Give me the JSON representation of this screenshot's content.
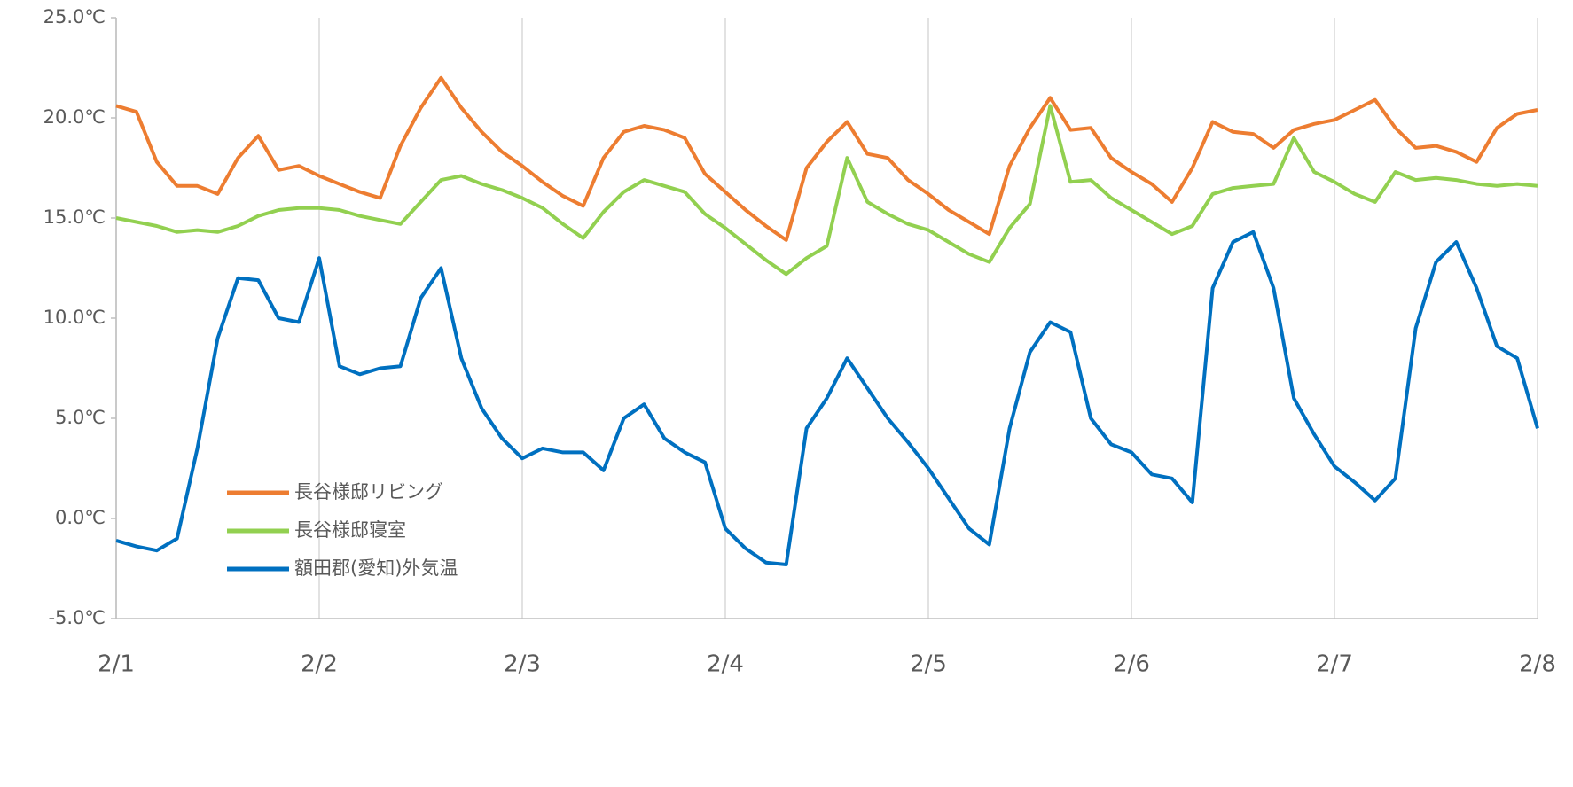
{
  "chart_data": {
    "type": "line",
    "x": [
      0,
      0.1,
      0.2,
      0.3,
      0.4,
      0.5,
      0.6,
      0.7,
      0.8,
      0.9,
      1,
      1.1,
      1.2,
      1.3,
      1.4,
      1.5,
      1.6,
      1.7,
      1.8,
      1.9,
      2,
      2.1,
      2.2,
      2.3,
      2.4,
      2.5,
      2.6,
      2.7,
      2.8,
      2.9,
      3,
      3.1,
      3.2,
      3.3,
      3.4,
      3.5,
      3.6,
      3.7,
      3.8,
      3.9,
      4,
      4.1,
      4.2,
      4.3,
      4.4,
      4.5,
      4.6,
      4.7,
      4.8,
      4.9,
      5,
      5.1,
      5.2,
      5.3,
      5.4,
      5.5,
      5.6,
      5.7,
      5.8,
      5.9,
      6,
      6.1,
      6.2,
      6.3,
      6.4,
      6.5,
      6.6,
      6.7,
      6.8,
      6.9,
      7
    ],
    "xlim": [
      0,
      7
    ],
    "xticks": [
      {
        "value": 0,
        "label": "2/1"
      },
      {
        "value": 1,
        "label": "2/2"
      },
      {
        "value": 2,
        "label": "2/3"
      },
      {
        "value": 3,
        "label": "2/4"
      },
      {
        "value": 4,
        "label": "2/5"
      },
      {
        "value": 5,
        "label": "2/6"
      },
      {
        "value": 6,
        "label": "2/7"
      },
      {
        "value": 7,
        "label": "2/8"
      }
    ],
    "ylim": [
      -5,
      25
    ],
    "yticks": [
      {
        "value": -5,
        "label": "-5.0℃"
      },
      {
        "value": 0,
        "label": "0.0℃"
      },
      {
        "value": 5,
        "label": "5.0℃"
      },
      {
        "value": 10,
        "label": "10.0℃"
      },
      {
        "value": 15,
        "label": "15.0℃"
      },
      {
        "value": 20,
        "label": "20.0℃"
      },
      {
        "value": 25,
        "label": "25.0℃"
      }
    ],
    "grid": true,
    "series": [
      {
        "name": "長谷様邸リビング",
        "color": "#ed7d31",
        "values": [
          20.6,
          20.3,
          17.8,
          16.6,
          16.6,
          16.2,
          18.0,
          19.1,
          17.4,
          17.6,
          17.1,
          16.7,
          16.3,
          16.0,
          18.6,
          20.5,
          22.0,
          20.5,
          19.3,
          18.3,
          17.6,
          16.8,
          16.1,
          15.6,
          18.0,
          19.3,
          19.6,
          19.4,
          19.0,
          17.2,
          16.3,
          15.4,
          14.6,
          13.9,
          17.5,
          18.8,
          19.8,
          18.2,
          18.0,
          16.9,
          16.2,
          15.4,
          14.8,
          14.2,
          17.6,
          19.5,
          21.0,
          19.4,
          19.5,
          18.0,
          17.3,
          16.7,
          15.8,
          17.5,
          19.8,
          19.3,
          19.2,
          18.5,
          19.4,
          19.7,
          19.9,
          20.4,
          20.9,
          19.5,
          18.5,
          18.6,
          18.3,
          17.8,
          19.5,
          20.2,
          20.4
        ]
      },
      {
        "name": "長谷様邸寝室",
        "color": "#92d050",
        "values": [
          15.0,
          14.8,
          14.6,
          14.3,
          14.4,
          14.3,
          14.6,
          15.1,
          15.4,
          15.5,
          15.5,
          15.4,
          15.1,
          14.9,
          14.7,
          15.8,
          16.9,
          17.1,
          16.7,
          16.4,
          16.0,
          15.5,
          14.7,
          14.0,
          15.3,
          16.3,
          16.9,
          16.6,
          16.3,
          15.2,
          14.5,
          13.7,
          12.9,
          12.2,
          13.0,
          13.6,
          18.0,
          15.8,
          15.2,
          14.7,
          14.4,
          13.8,
          13.2,
          12.8,
          14.5,
          15.7,
          20.6,
          16.8,
          16.9,
          16.0,
          15.4,
          14.8,
          14.2,
          14.6,
          16.2,
          16.5,
          16.6,
          16.7,
          19.0,
          17.3,
          16.8,
          16.2,
          15.8,
          17.3,
          16.9,
          17.0,
          16.9,
          16.7,
          16.6,
          16.7,
          16.6
        ]
      },
      {
        "name": "額田郡(愛知)外気温",
        "color": "#0070c0",
        "values": [
          -1.1,
          -1.4,
          -1.6,
          -1.0,
          3.5,
          9.0,
          12.0,
          11.9,
          10.0,
          9.8,
          13.0,
          7.6,
          7.2,
          7.5,
          7.6,
          11.0,
          12.5,
          8.0,
          5.5,
          4.0,
          3.0,
          3.5,
          3.3,
          3.3,
          2.4,
          5.0,
          5.7,
          4.0,
          3.3,
          2.8,
          -0.5,
          -1.5,
          -2.2,
          -2.3,
          4.5,
          6.0,
          8.0,
          6.5,
          5.0,
          3.8,
          2.5,
          1.0,
          -0.5,
          -1.3,
          4.5,
          8.3,
          9.8,
          9.3,
          5.0,
          3.7,
          3.3,
          2.2,
          2.0,
          0.8,
          11.5,
          13.8,
          14.3,
          11.5,
          6.0,
          4.2,
          2.6,
          1.8,
          0.9,
          2.0,
          9.5,
          12.8,
          13.8,
          11.5,
          8.6,
          8.0,
          4.5
        ]
      }
    ]
  }
}
